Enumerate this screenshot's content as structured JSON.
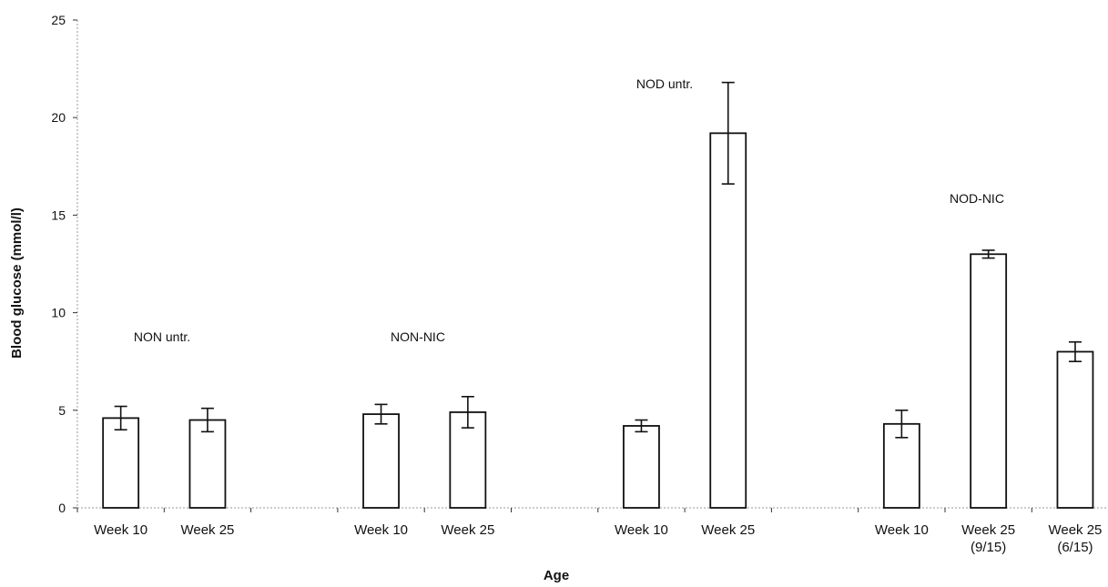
{
  "chart_data": {
    "type": "bar",
    "xlabel": "Age",
    "ylabel": "Blood glucose (mmol/l)",
    "ylim": [
      0,
      25
    ],
    "yticks": [
      0,
      5,
      10,
      15,
      20,
      25
    ],
    "grid": false,
    "legend": "none",
    "bar_color": "#ffffff",
    "edge_color": "#111111",
    "groups": [
      {
        "label": "NON untr.",
        "bars": [
          {
            "label": [
              "Week 10"
            ],
            "value": 4.6,
            "err": 0.6
          },
          {
            "label": [
              "Week 25"
            ],
            "value": 4.5,
            "err": 0.6
          }
        ]
      },
      {
        "label": "NON-NIC",
        "bars": [
          {
            "label": [
              "Week 10"
            ],
            "value": 4.8,
            "err": 0.5
          },
          {
            "label": [
              "Week 25"
            ],
            "value": 4.9,
            "err": 0.8
          }
        ]
      },
      {
        "label": "NOD untr.",
        "bars": [
          {
            "label": [
              "Week 10"
            ],
            "value": 4.2,
            "err": 0.3
          },
          {
            "label": [
              "Week 25"
            ],
            "value": 19.2,
            "err": 2.6
          }
        ]
      },
      {
        "label": "NOD-NIC",
        "bars": [
          {
            "label": [
              "Week 10"
            ],
            "value": 4.3,
            "err": 0.7
          },
          {
            "label": [
              "Week 25",
              "(9/15)"
            ],
            "value": 13.0,
            "err": 0.2
          },
          {
            "label": [
              "Week 25",
              "(6/15)"
            ],
            "value": 8.0,
            "err": 0.5
          }
        ]
      }
    ]
  }
}
